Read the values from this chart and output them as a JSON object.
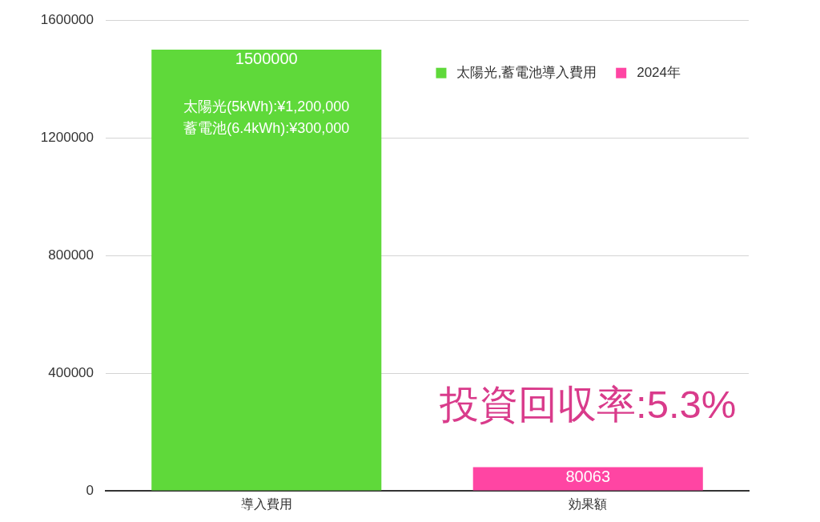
{
  "chart_data": {
    "type": "bar",
    "categories": [
      "導入費用",
      "効果額"
    ],
    "series": [
      {
        "name": "太陽光,蓄電池導入費用",
        "color": "#5fd93a",
        "values": [
          1500000,
          null
        ]
      },
      {
        "name": "2024年",
        "color": "#ff45a3",
        "values": [
          null,
          80063
        ]
      }
    ],
    "ylim": [
      0,
      1600000
    ],
    "yticks": [
      0,
      400000,
      800000,
      1200000,
      1600000
    ],
    "grid": "y",
    "legend": "top right",
    "data_labels": true,
    "annotations": [
      "太陽光(5kWh):¥1,200,000",
      "蓄電池(6.4kWh):¥300,000",
      "投資回収率:5.3%"
    ]
  }
}
